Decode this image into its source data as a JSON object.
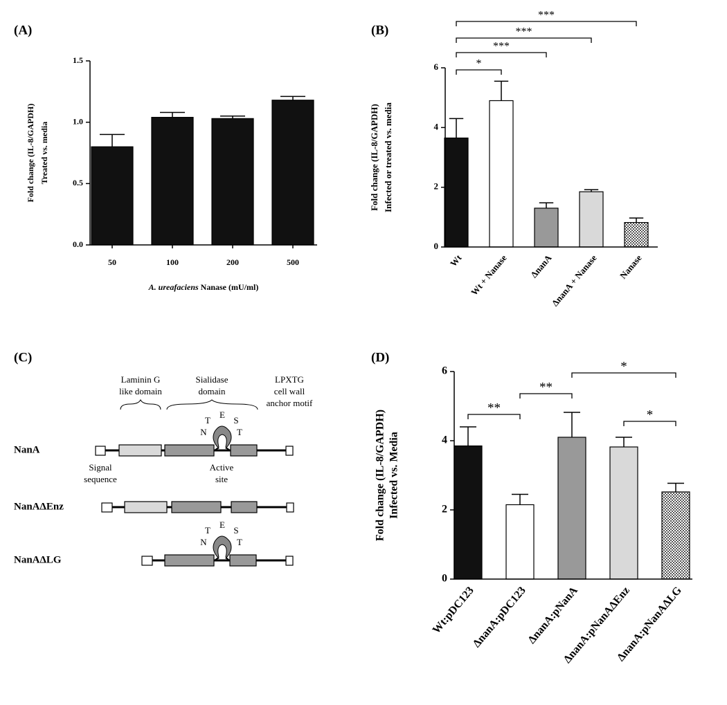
{
  "chart_data": [
    {
      "type": "bar",
      "panel": "(A)",
      "ylabel": [
        "Fold change (IL-8/GAPDH)",
        "Treated vs. media"
      ],
      "xlabel": [
        "A. ureafaciens",
        "Nanase (mU/ml)"
      ],
      "categories": [
        "50",
        "100",
        "200",
        "500"
      ],
      "values": [
        0.8,
        1.04,
        1.03,
        1.18
      ],
      "errors": [
        0.1,
        0.04,
        0.02,
        0.03
      ],
      "colors": [
        "#111111",
        "#111111",
        "#111111",
        "#111111"
      ],
      "patterned": [
        false,
        false,
        false,
        false
      ],
      "ylim": [
        0,
        1.5
      ],
      "yticks": [
        {
          "value": 0,
          "label": "0.0"
        },
        0.5,
        {
          "value": 1,
          "label": "1.0"
        },
        1.5
      ],
      "rotate_labels": false,
      "significance": []
    },
    {
      "type": "bar",
      "panel": "(B)",
      "ylabel": [
        "Fold change (IL-8/GAPDH)",
        "Infected or treated vs. media"
      ],
      "categories": [
        "Wt",
        "Wt + Nanase",
        "ΔnanA",
        "ΔnanA + Nanase",
        "Nanase"
      ],
      "values": [
        3.65,
        4.9,
        1.3,
        1.85,
        0.82
      ],
      "errors": [
        0.65,
        0.65,
        0.18,
        0.07,
        0.15
      ],
      "colors": [
        "#111111",
        "#ffffff",
        "#999999",
        "#d9d9d9",
        "#ffffff"
      ],
      "patterned": [
        false,
        false,
        false,
        false,
        true
      ],
      "ylim": [
        0,
        6
      ],
      "yticks": [
        0,
        2,
        4,
        6
      ],
      "rotate_labels": true,
      "significance": [
        {
          "from": "Wt",
          "to": "Wt + Nanase",
          "label": "*"
        },
        {
          "from": "Wt",
          "to": "ΔnanA",
          "label": "***"
        },
        {
          "from": "Wt",
          "to": "ΔnanA + Nanase",
          "label": "***"
        },
        {
          "from": "Wt",
          "to": "Nanase",
          "label": "***"
        }
      ]
    },
    {
      "type": "bar",
      "panel": "(D)",
      "ylabel": [
        "Fold change (IL-8/GAPDH)",
        "Infected vs. Media"
      ],
      "categories": [
        "Wt:pDC123",
        "ΔnanA:pDC123",
        "ΔnanA:pNanA",
        "ΔnanA:pNanAΔEnz",
        "ΔnanA:pNanAΔLG"
      ],
      "values": [
        3.85,
        2.15,
        4.1,
        3.82,
        2.52
      ],
      "errors": [
        0.55,
        0.3,
        0.72,
        0.28,
        0.25
      ],
      "colors": [
        "#111111",
        "#ffffff",
        "#999999",
        "#d9d9d9",
        "#ffffff"
      ],
      "patterned": [
        false,
        false,
        false,
        false,
        true
      ],
      "ylim": [
        0,
        6
      ],
      "yticks": [
        0,
        2,
        4,
        6
      ],
      "rotate_labels": true,
      "significance": [
        {
          "from": "Wt:pDC123",
          "to": "ΔnanA:pDC123",
          "label": "**"
        },
        {
          "from": "ΔnanA:pDC123",
          "to": "ΔnanA:pNanA",
          "label": "**"
        },
        {
          "from": "ΔnanA:pNanA",
          "to": "ΔnanA:pNanAΔLG",
          "label": "*"
        },
        {
          "from": "ΔnanA:pNanAΔEnz",
          "to": "ΔnanA:pNanAΔLG",
          "label": "*"
        }
      ]
    }
  ],
  "diagram": {
    "panel": "(C)",
    "domains": {
      "laminin": [
        "Laminin G",
        "like domain"
      ],
      "sialidase": [
        "Sialidase",
        "domain"
      ],
      "lpxtg": [
        "LPXTG",
        "cell wall",
        "anchor motif"
      ]
    },
    "signal": [
      "Signal",
      "sequence"
    ],
    "active_site": [
      "Active",
      "site"
    ],
    "active_site_letters": [
      "T",
      "E",
      "S",
      "N",
      "T"
    ],
    "constructs": [
      "NanA",
      "NanAΔEnz",
      "NanAΔLG"
    ]
  }
}
